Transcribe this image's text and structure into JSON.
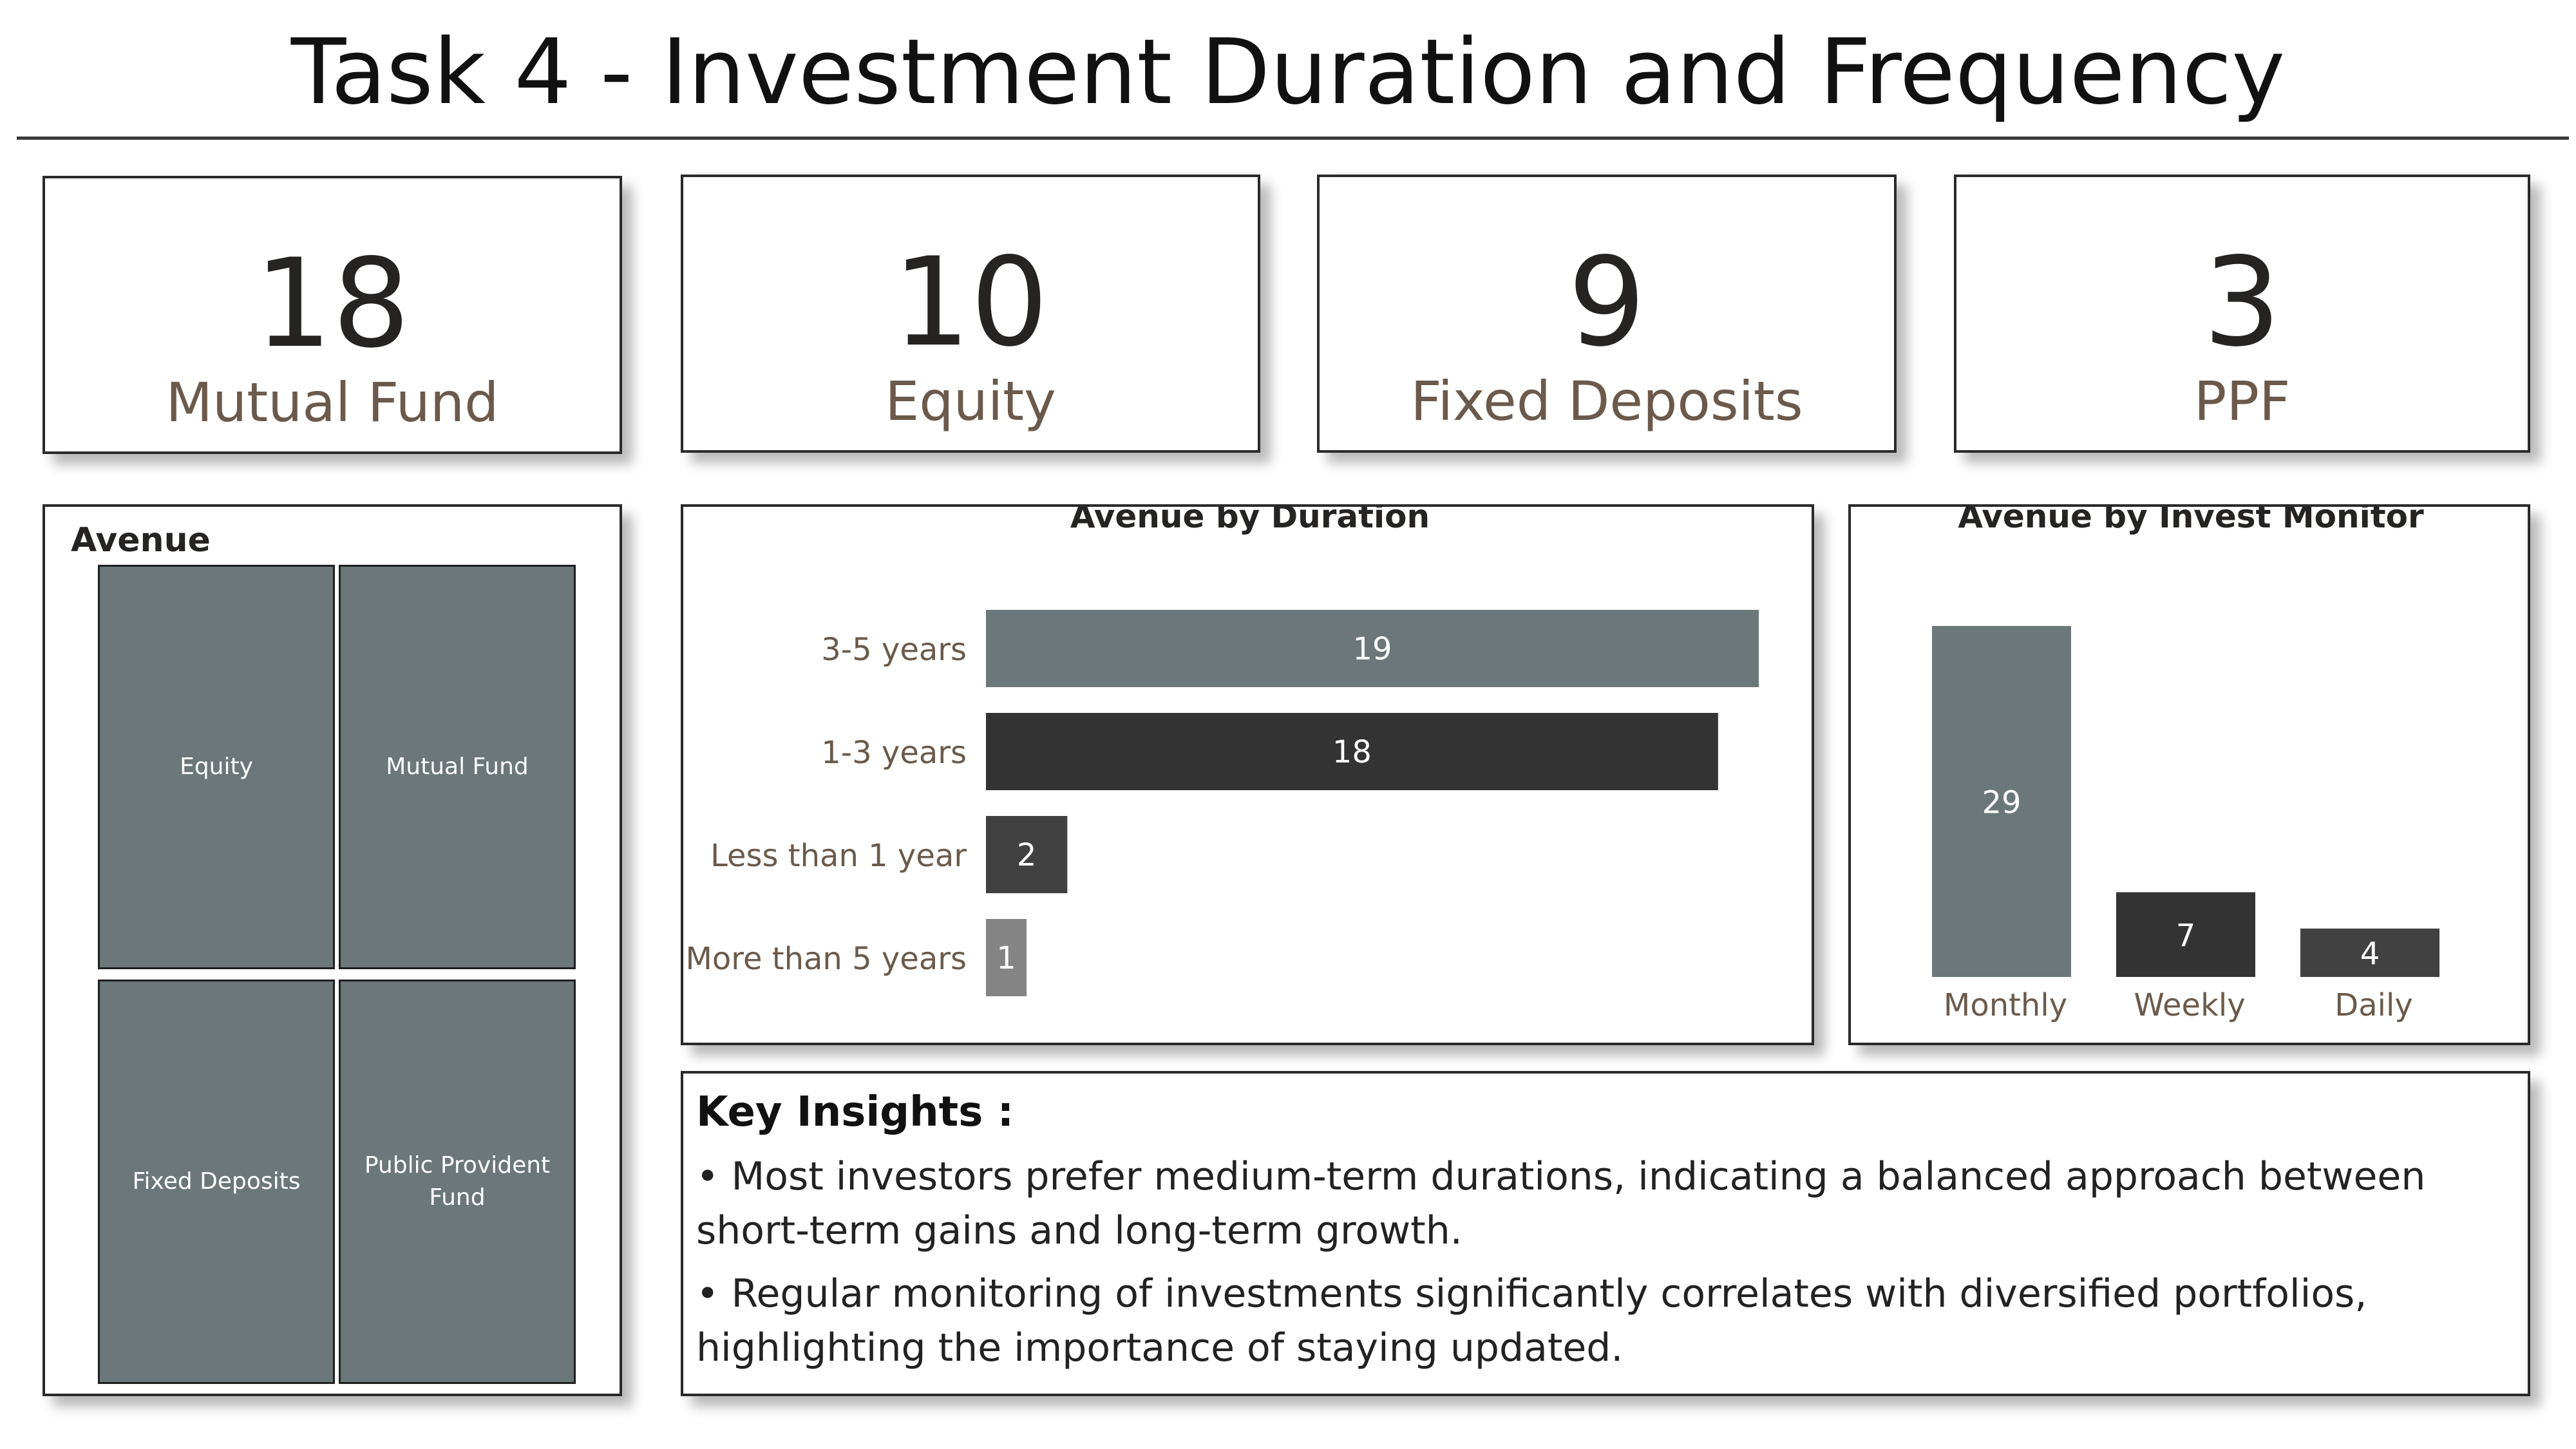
{
  "title": "Task 4 - Investment Duration and Frequency",
  "kpis": [
    {
      "value": "18",
      "label": "Mutual Fund"
    },
    {
      "value": "10",
      "label": "Equity"
    },
    {
      "value": "9",
      "label": "Fixed Deposits"
    },
    {
      "value": "3",
      "label": "PPF"
    }
  ],
  "treemap": {
    "title": "Avenue",
    "tiles": [
      "Equity",
      "Mutual Fund",
      "Fixed Deposits",
      "Public Provident Fund"
    ],
    "color": "#6b7778"
  },
  "insights": {
    "heading": "Key Insights :",
    "items": [
      "Most investors prefer medium-term durations, indicating a balanced approach between short-term gains and long-term growth.",
      "Regular monitoring of investments significantly correlates with diversified portfolios, highlighting the importance of staying updated."
    ]
  },
  "chart_data": [
    {
      "type": "bar",
      "orientation": "horizontal",
      "title": "Avenue by Duration",
      "categories": [
        "3-5 years",
        "1-3 years",
        "Less than 1 year",
        "More than 5 years"
      ],
      "values": [
        19,
        18,
        2,
        1
      ],
      "colors": [
        "#6b7778",
        "#333333",
        "#414141",
        "#848484"
      ],
      "data_labels": true,
      "grid": false
    },
    {
      "type": "bar",
      "orientation": "vertical",
      "title": "Avenue by Invest Monitor",
      "categories": [
        "Monthly",
        "Weekly",
        "Daily"
      ],
      "values": [
        29,
        7,
        4
      ],
      "colors": [
        "#6b7778",
        "#333333",
        "#414141"
      ],
      "data_labels": true,
      "grid": false
    }
  ]
}
